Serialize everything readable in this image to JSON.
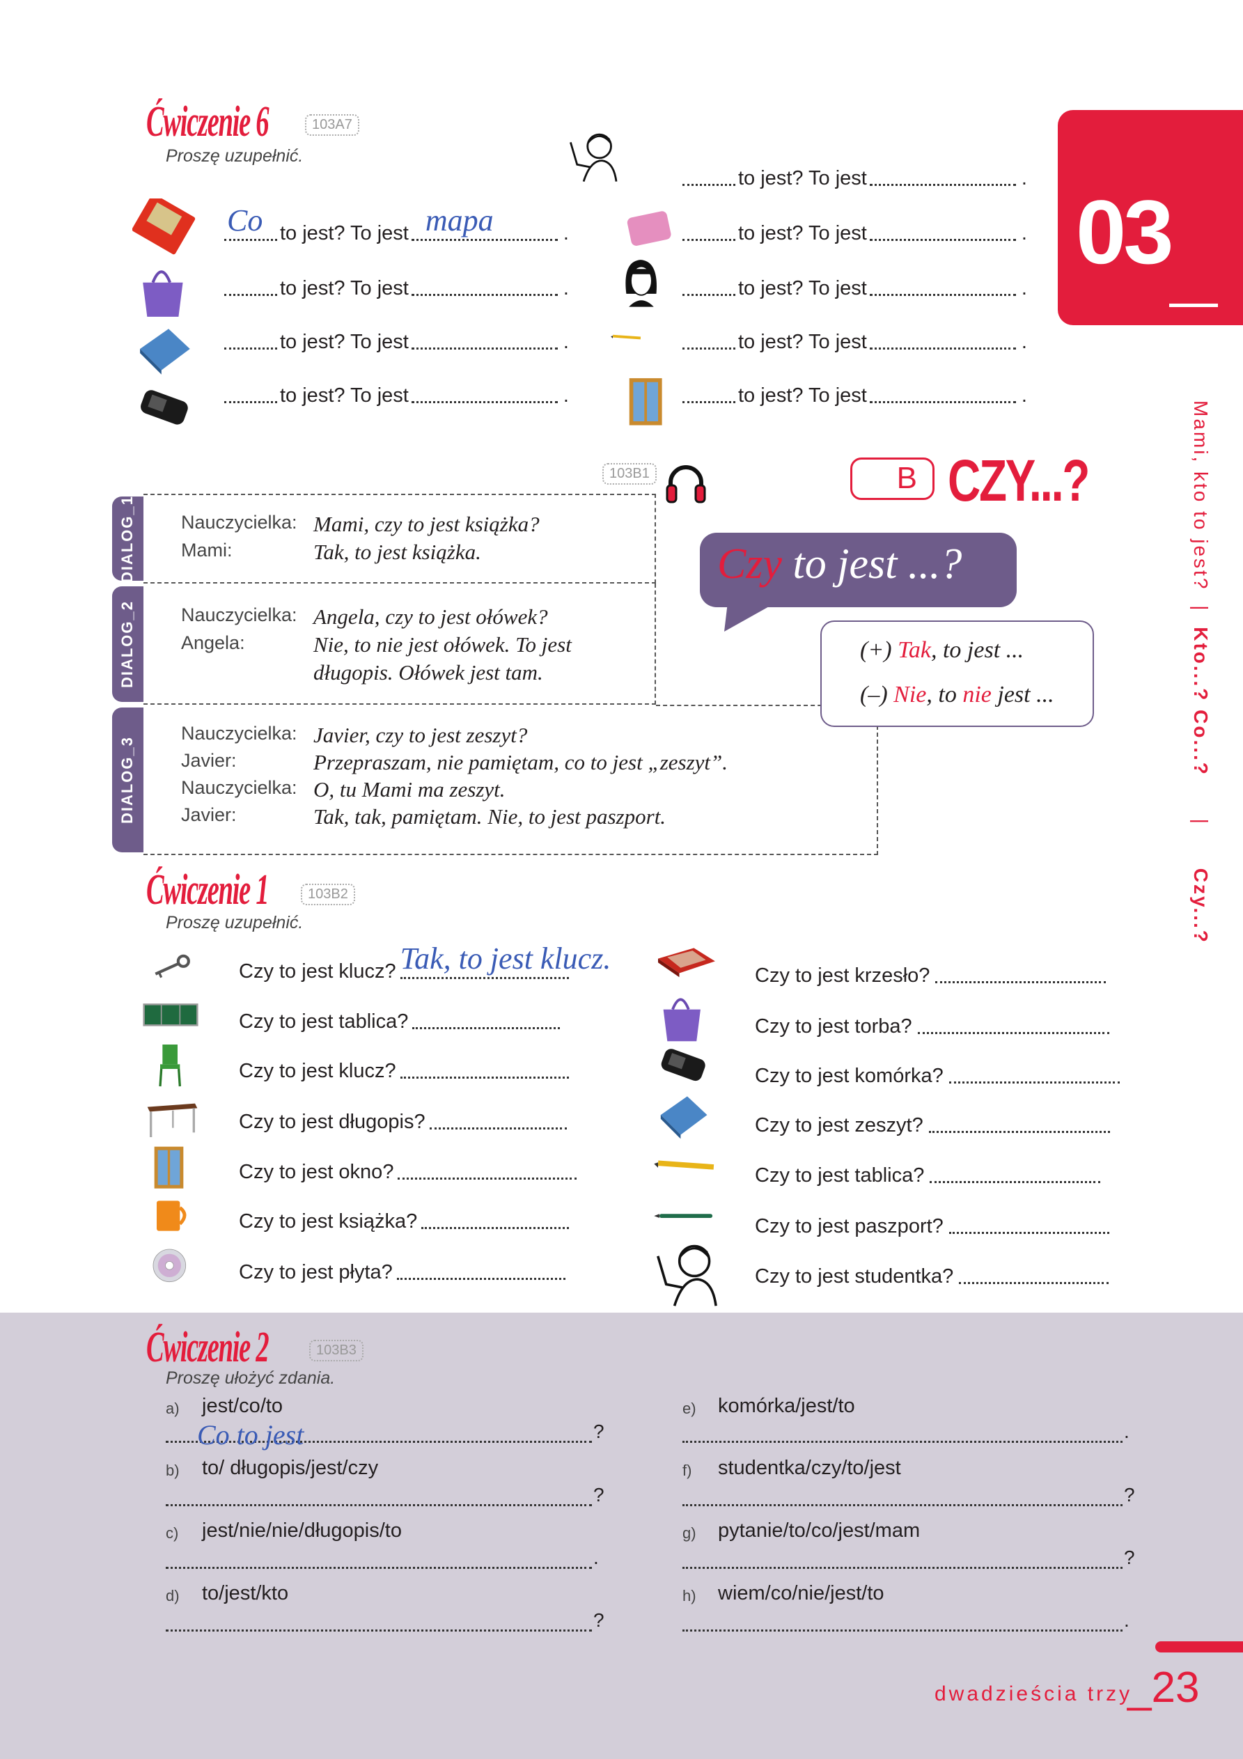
{
  "chapter": {
    "number": "03",
    "tab_color": "#e31d3c"
  },
  "side_nav": {
    "item1": "Mami, kto to jest?",
    "sep": "|",
    "item2": "Kto...? Co...?",
    "item3": "Czy...?"
  },
  "exercise6": {
    "title": "Ćwiczenie 6",
    "code": "103A7",
    "instruction": "Proszę uzupełnić.",
    "left": [
      {
        "icon": "map",
        "text": "to jest? To jest",
        "answer1": "Co",
        "answer2": "mapa",
        "end": "."
      },
      {
        "icon": "bag",
        "text": "to jest? To jest",
        "answer1": "",
        "answer2": "",
        "end": "."
      },
      {
        "icon": "book-blue",
        "text": "to jest? To jest",
        "answer1": "",
        "answer2": "",
        "end": "."
      },
      {
        "icon": "phone",
        "text": "to jest? To jest",
        "answer1": "",
        "answer2": "",
        "end": "."
      }
    ],
    "right": [
      {
        "icon": "woman-drawing",
        "text": "to jest? To jest",
        "end": "."
      },
      {
        "icon": "eraser",
        "text": "to jest? To jest",
        "end": "."
      },
      {
        "icon": "woman-dark-hair",
        "text": "to jest? To jest",
        "end": "."
      },
      {
        "icon": "pencil",
        "text": "to jest? To jest",
        "end": "."
      },
      {
        "icon": "window",
        "text": "to jest? To jest",
        "end": "."
      }
    ]
  },
  "section_b": {
    "letter": "B",
    "title": "CZY...?",
    "code": "103B1",
    "audio_icon": "headphones"
  },
  "dialogs": [
    {
      "tab": "DIALOG_1",
      "lines": [
        {
          "speaker": "Nauczycielka:",
          "text": "Mami, czy to jest książka?"
        },
        {
          "speaker": "Mami:",
          "text": "Tak, to jest książka."
        }
      ]
    },
    {
      "tab": "DIALOG_2",
      "lines": [
        {
          "speaker": "Nauczycielka:",
          "text": "Angela, czy to jest ołówek?"
        },
        {
          "speaker": "Angela:",
          "text": "Nie, to nie jest ołówek. To jest"
        },
        {
          "speaker": "",
          "text": "długopis. Ołówek jest tam."
        }
      ]
    },
    {
      "tab": "DIALOG_3",
      "lines": [
        {
          "speaker": "Nauczycielka:",
          "text": "Javier, czy to jest zeszyt?"
        },
        {
          "speaker": "Javier:",
          "text": "Przepraszam, nie pamiętam, co to jest „zeszyt”."
        },
        {
          "speaker": "Nauczycielka:",
          "text": "O, tu Mami ma zeszyt."
        },
        {
          "speaker": "Javier:",
          "text": "Tak, tak, pamiętam. Nie, to jest paszport."
        }
      ]
    }
  ],
  "bubble": {
    "red": "Czy",
    "rest": " to jest ...?",
    "color": "#6e5c8a"
  },
  "answers_box": {
    "plus": "(+)",
    "plus_red": "Tak",
    "plus_rest": ", to jest ...",
    "minus": "(–)",
    "minus_red1": "Nie",
    "minus_mid": ", to ",
    "minus_red2": "nie",
    "minus_rest": " jest ..."
  },
  "exercise1": {
    "title": "Ćwiczenie 1",
    "code": "103B2",
    "instruction": "Proszę uzupełnić.",
    "left": [
      {
        "icon": "key",
        "q": "Czy to jest klucz?",
        "answer": "Tak, to jest klucz."
      },
      {
        "icon": "blackboard",
        "q": "Czy to jest tablica?",
        "answer": ""
      },
      {
        "icon": "chair",
        "q": "Czy to jest klucz?",
        "answer": ""
      },
      {
        "icon": "table",
        "q": "Czy to jest długopis?",
        "answer": ""
      },
      {
        "icon": "window",
        "q": "Czy to jest okno?",
        "answer": ""
      },
      {
        "icon": "mug",
        "q": "Czy to jest książka?",
        "answer": ""
      },
      {
        "icon": "cd",
        "q": "Czy to jest płyta?",
        "answer": ""
      }
    ],
    "right": [
      {
        "icon": "book-red",
        "q": "Czy to jest krzesło?"
      },
      {
        "icon": "bag",
        "q": "Czy to jest torba?"
      },
      {
        "icon": "phone",
        "q": "Czy to jest komórka?"
      },
      {
        "icon": "book-blue",
        "q": "Czy to jest zeszyt?"
      },
      {
        "icon": "pencil",
        "q": "Czy to jest tablica?"
      },
      {
        "icon": "pen",
        "q": "Czy to jest paszport?"
      },
      {
        "icon": "woman-drawing",
        "q": "Czy to jest studentka?"
      }
    ]
  },
  "exercise2": {
    "title": "Ćwiczenie 2",
    "code": "103B3",
    "instruction": "Proszę ułożyć zdania.",
    "left": [
      {
        "letter": "a)",
        "words": "jest/co/to",
        "answer": "Co to jest",
        "end": "?"
      },
      {
        "letter": "b)",
        "words": "to/ długopis/jest/czy",
        "answer": "",
        "end": "?"
      },
      {
        "letter": "c)",
        "words": "jest/nie/nie/długopis/to",
        "answer": "",
        "end": "."
      },
      {
        "letter": "d)",
        "words": "to/jest/kto",
        "answer": "",
        "end": "?"
      }
    ],
    "right": [
      {
        "letter": "e)",
        "words": "komórka/jest/to",
        "end": "."
      },
      {
        "letter": "f)",
        "words": "studentka/czy/to/jest",
        "end": "?"
      },
      {
        "letter": "g)",
        "words": "pytanie/to/co/jest/mam",
        "end": "?"
      },
      {
        "letter": "h)",
        "words": "wiem/co/nie/jest/to",
        "end": "."
      }
    ]
  },
  "footer": {
    "page_words": "dwadzieścia trzy",
    "page_number": "_23"
  }
}
